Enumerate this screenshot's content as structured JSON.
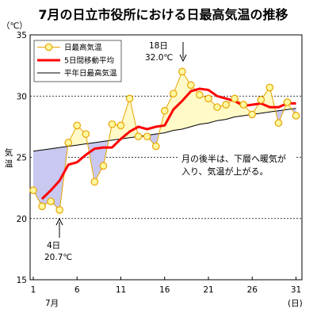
{
  "chart_data": {
    "type": "line",
    "title": "7月の日立市役所における日最高気温の推移",
    "unit_label": "（℃）",
    "ylabel": "気温",
    "x_unit_label": "(日)",
    "month_label": "7月",
    "ylim": [
      15,
      35
    ],
    "yticks": [
      15,
      20,
      25,
      30,
      35
    ],
    "xlim": [
      1,
      31
    ],
    "xticks": [
      1,
      6,
      11,
      16,
      21,
      26,
      31
    ],
    "x": [
      1,
      2,
      3,
      4,
      5,
      6,
      7,
      8,
      9,
      10,
      11,
      12,
      13,
      14,
      15,
      16,
      17,
      18,
      19,
      20,
      21,
      22,
      23,
      24,
      25,
      26,
      27,
      28,
      29,
      30,
      31
    ],
    "series": [
      {
        "name": "日最高気温",
        "color": "#e8a400",
        "marker": "circle",
        "values": [
          22.3,
          21.0,
          21.4,
          20.7,
          26.2,
          27.6,
          26.9,
          23.0,
          24.3,
          27.7,
          27.6,
          29.8,
          26.7,
          26.7,
          25.9,
          28.8,
          30.2,
          32.0,
          30.9,
          30.1,
          29.8,
          29.1,
          29.3,
          29.8,
          29.3,
          28.5,
          29.7,
          30.7,
          27.8,
          29.5,
          28.4
        ]
      },
      {
        "name": "5日間移動平均",
        "color": "#ff0000",
        "values": [
          null,
          21.6,
          22.3,
          23.1,
          24.4,
          24.6,
          25.2,
          25.7,
          25.8,
          25.8,
          26.5,
          27.1,
          27.5,
          27.3,
          27.5,
          27.6,
          28.9,
          29.6,
          30.4,
          30.6,
          30.5,
          30.0,
          29.8,
          29.6,
          29.2,
          29.3,
          29.4,
          29.1,
          29.1,
          29.4,
          29.4
        ]
      },
      {
        "name": "平年日最高気温",
        "color": "#000000",
        "values": [
          25.5,
          25.6,
          25.7,
          25.8,
          25.9,
          26.0,
          26.1,
          26.2,
          26.3,
          26.4,
          26.5,
          26.6,
          26.7,
          26.8,
          26.9,
          27.0,
          27.2,
          27.3,
          27.5,
          27.7,
          27.8,
          28.0,
          28.1,
          28.3,
          28.4,
          28.5,
          28.6,
          28.7,
          28.8,
          28.9,
          29.0
        ]
      }
    ],
    "fill_colors": {
      "below": "#c8c8f0",
      "above": "#fffac8"
    },
    "grid": {
      "horizontal_dashed": [
        20,
        25,
        30
      ]
    },
    "legend_position": "top-left",
    "annotations": [
      {
        "day": 18,
        "value": 32.0,
        "label_day": "18日",
        "label_temp": "32.0℃",
        "position": "above"
      },
      {
        "day": 4,
        "value": 20.7,
        "label_day": "4日",
        "label_temp": "20.7℃",
        "position": "below"
      }
    ],
    "note_lines": [
      "月の後半は、下層へ暖気が",
      "入り、気温が上がる。"
    ]
  }
}
